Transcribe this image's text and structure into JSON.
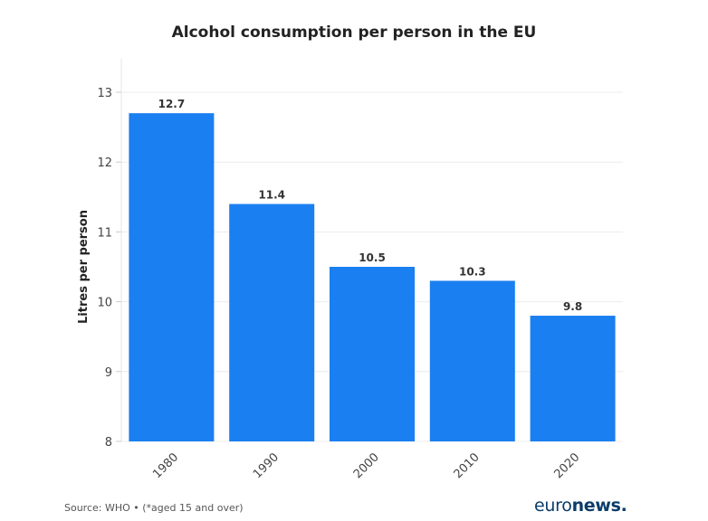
{
  "chart_data": {
    "type": "bar",
    "title": "Alcohol consumption per person in the EU",
    "xlabel": "",
    "ylabel": "Litres per person",
    "categories": [
      "1980",
      "1990",
      "2000",
      "2010",
      "2020"
    ],
    "values": [
      12.7,
      11.4,
      10.5,
      10.3,
      9.8
    ],
    "data_labels": [
      "12.7",
      "11.4",
      "10.5",
      "10.3",
      "9.8"
    ],
    "ylim": [
      8,
      13
    ],
    "yticks": [
      "8",
      "9",
      "10",
      "11",
      "12",
      "13"
    ],
    "grid": true,
    "bar_color": "#1a7ff0"
  },
  "footer": {
    "source": "Source: WHO • (*aged 15 and over)",
    "logo_light": "euro",
    "logo_bold": "news."
  }
}
